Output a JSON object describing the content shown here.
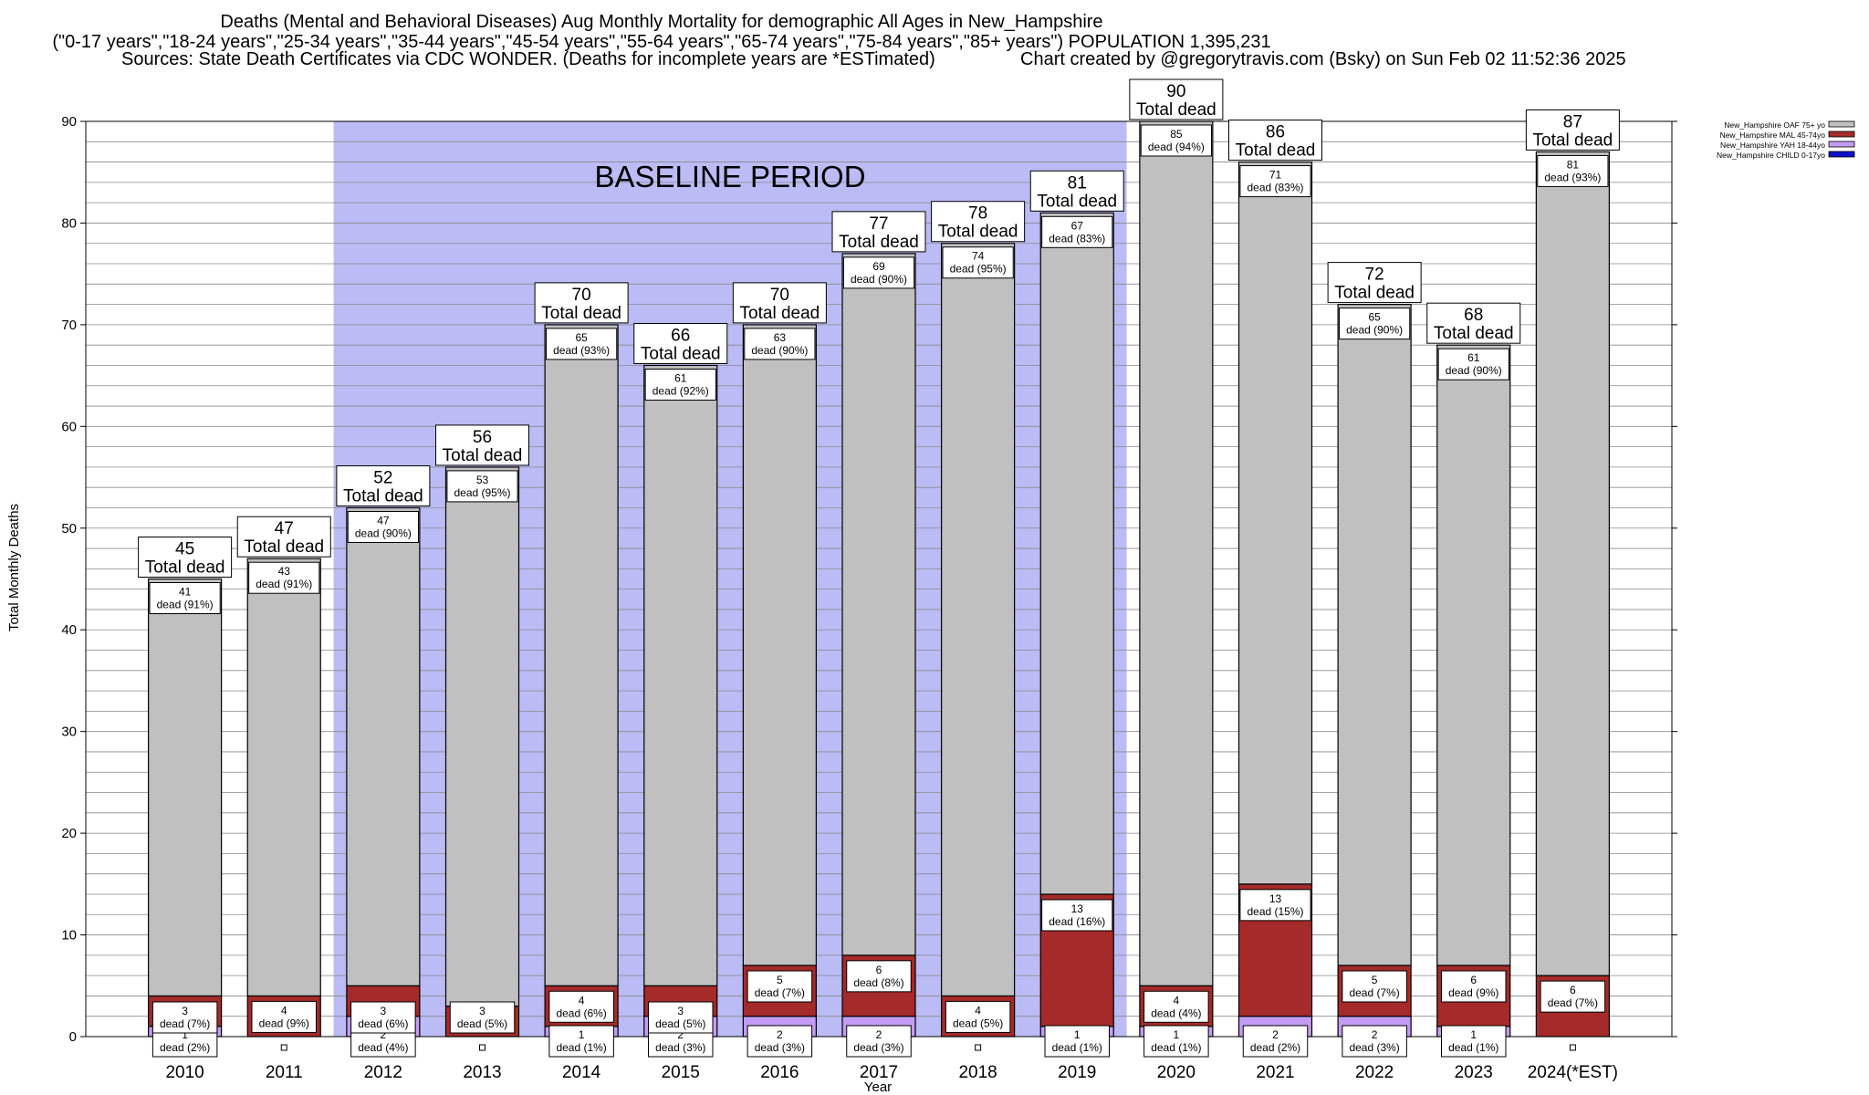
{
  "header": {
    "title": "Deaths (Mental and Behavioral Diseases) Aug Monthly Mortality for demographic All Ages in New_Hampshire",
    "subtitle": "(\"0-17 years\",\"18-24 years\",\"25-34 years\",\"35-44 years\",\"45-54 years\",\"55-64 years\",\"65-74 years\",\"75-84 years\",\"85+ years\") POPULATION 1,395,231",
    "sources": "Sources: State Death Certificates via CDC WONDER. (Deaths for incomplete years are *ESTimated)",
    "credit": "Chart created by @gregorytravis.com (Bsky) on Sun Feb 02 11:52:36 2025"
  },
  "chart_data": {
    "type": "bar",
    "stacked": true,
    "xlabel": "Year",
    "ylabel": "Total Monthly Deaths",
    "ylim": [
      0,
      90
    ],
    "yticks": [
      0,
      10,
      20,
      30,
      40,
      50,
      60,
      70,
      80,
      90
    ],
    "grid": "horizontal, every 2 units",
    "legend_position": "top-right",
    "baseline": {
      "label": "BASELINE PERIOD",
      "from": "2012",
      "to": "2019",
      "color": "#bbbbf5"
    },
    "total_label_suffix": "Total dead",
    "categories": [
      "2010",
      "2011",
      "2012",
      "2013",
      "2014",
      "2015",
      "2016",
      "2017",
      "2018",
      "2019",
      "2020",
      "2021",
      "2022",
      "2023",
      "2024(*EST)"
    ],
    "totals": [
      45,
      47,
      52,
      56,
      70,
      66,
      70,
      77,
      78,
      81,
      90,
      86,
      72,
      68,
      87
    ],
    "series": [
      {
        "name": "New_Hampshire CHILD 0-17yo",
        "color": "#1010c8",
        "values": [
          0,
          0,
          0,
          0,
          0,
          0,
          0,
          0,
          0,
          0,
          0,
          0,
          0,
          0,
          0
        ],
        "labels": [
          "0",
          "",
          "0",
          "",
          "0",
          "0",
          "0",
          "0",
          "",
          "0",
          "0",
          "0",
          "0",
          "0",
          ""
        ]
      },
      {
        "name": "New_Hampshire YAH 18-44yo",
        "color": "#c49cf5",
        "values": [
          1,
          0,
          2,
          0,
          1,
          2,
          2,
          2,
          0,
          1,
          1,
          2,
          2,
          1,
          0
        ],
        "labels": [
          "1\ndead (2%)",
          "",
          "2\ndead (4%)",
          "",
          "1\ndead (1%)",
          "2\ndead (3%)",
          "2\ndead (3%)",
          "2\ndead (3%)",
          "",
          "1\ndead (1%)",
          "1\ndead (1%)",
          "2\ndead (2%)",
          "2\ndead (3%)",
          "1\ndead (1%)",
          ""
        ]
      },
      {
        "name": "New_Hampshire MAL 45-74yo",
        "color": "#a52a2a",
        "values": [
          3,
          4,
          3,
          3,
          4,
          3,
          5,
          6,
          4,
          13,
          4,
          13,
          5,
          6,
          6
        ],
        "labels": [
          "3\ndead (7%)",
          "4\ndead (9%)",
          "3\ndead (6%)",
          "3\ndead (5%)",
          "4\ndead (6%)",
          "3\ndead (5%)",
          "5\ndead (7%)",
          "6\ndead (8%)",
          "4\ndead (5%)",
          "13\ndead (16%)",
          "4\ndead (4%)",
          "13\ndead (15%)",
          "5\ndead (7%)",
          "6\ndead (9%)",
          "6\ndead (7%)"
        ]
      },
      {
        "name": "New_Hampshire OAF 75+ yo",
        "color": "#c0c0c0",
        "values": [
          41,
          43,
          47,
          53,
          65,
          61,
          63,
          69,
          74,
          67,
          85,
          71,
          65,
          61,
          81
        ],
        "labels": [
          "41\ndead (91%)",
          "43\ndead (91%)",
          "47\ndead (90%)",
          "53\ndead (95%)",
          "65\ndead (93%)",
          "61\ndead (92%)",
          "63\ndead (90%)",
          "69\ndead (90%)",
          "74\ndead (95%)",
          "67\ndead (83%)",
          "85\ndead (94%)",
          "71\ndead (83%)",
          "65\ndead (90%)",
          "61\ndead (90%)",
          "81\ndead (93%)"
        ]
      }
    ]
  }
}
